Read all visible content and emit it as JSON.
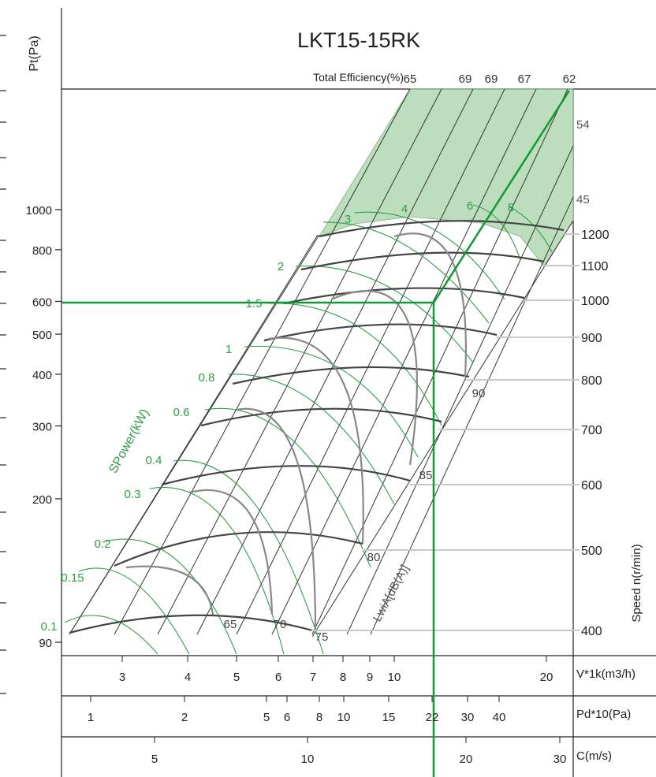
{
  "chart_data": {
    "type": "line",
    "title": "LKT15-15RK",
    "ylabel": "Pt(Pa)",
    "ylim": [
      85,
      2500
    ],
    "y_scale": "log",
    "y_ticks": [
      90,
      200,
      300,
      400,
      500,
      600,
      800,
      1000
    ],
    "efficiency_label": "Total Efficiency(%)",
    "efficiency_values": [
      "65",
      "69",
      "69",
      "67",
      "62"
    ],
    "efficiency_right": [
      "54",
      "45"
    ],
    "speed_label": "Speed n(r/min)",
    "speeds": [
      400,
      500,
      600,
      700,
      800,
      900,
      1000,
      1100,
      1200
    ],
    "power_label": "SPower(kW)",
    "power_values": [
      "0.1",
      "0.15",
      "0.2",
      "0.3",
      "0.4",
      "0.6",
      "0.8",
      "1",
      "1.5",
      "2",
      "3",
      "4",
      "6",
      "8"
    ],
    "noise_label": "LwiA[dB(A)]",
    "noise_values": [
      "65",
      "70",
      "75",
      "80",
      "85",
      "90"
    ],
    "axes": [
      {
        "label": "V*1k(m3/h)",
        "ticks": [
          "3",
          "4",
          "5",
          "6",
          "7",
          "8",
          "9",
          "10",
          "20"
        ]
      },
      {
        "label": "Pd*10(Pa)",
        "ticks": [
          "1",
          "2",
          "5",
          "6",
          "8",
          "10",
          "15",
          "22",
          "30",
          "40"
        ]
      },
      {
        "label": "C(m/s)",
        "ticks": [
          "5",
          "10",
          "20",
          "30"
        ]
      }
    ],
    "operating_point": {
      "Pt": 590,
      "V": 13.5,
      "speed": 1000
    },
    "colors": {
      "efficiency_band": "#9ccb9c",
      "power_lines": "#2e9e4a",
      "operating_line": "#119933",
      "speed_curves": "#555555"
    }
  }
}
